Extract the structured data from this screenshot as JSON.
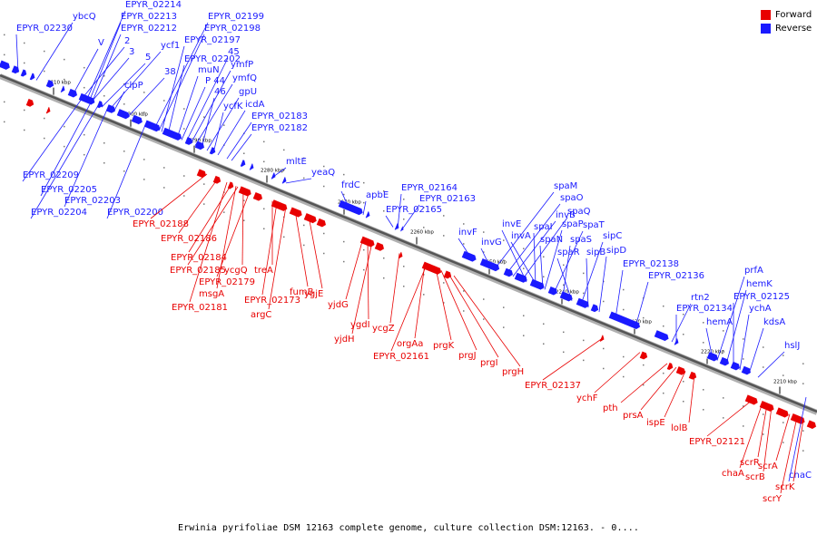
{
  "legend": {
    "forward_label": "Forward",
    "reverse_label": "Reverse",
    "forward_color": "#e80000",
    "reverse_color": "#1a1aff"
  },
  "caption": "Erwinia pyrifoliae DSM 12163 complete genome, culture collection DSM:12163. - 0....",
  "ticks": [
    "2310 kbp",
    "2300 kbp",
    "2290 kbp",
    "2280 kbp",
    "2270 kbp",
    "2260 kbp",
    "2250 kbp",
    "2240 kbp",
    "2230 kbp",
    "2220 kbp",
    "2210 kbp"
  ],
  "reverse_genes": [
    "EPYR_02214",
    "EPYR_02213",
    "EPYR_02212",
    "EPYR_02199",
    "EPYR_02198",
    "EPYR_02197",
    "EPYR_02230",
    "ybcQ",
    "V",
    "2",
    "3",
    "ycf1",
    "5",
    "38",
    "clpP",
    "EPYR_02202",
    "muN",
    "45",
    "ymfP",
    "P 44",
    "ymfQ",
    "46",
    "gpU",
    "ycfK",
    "icdA",
    "EPYR_02183",
    "EPYR_02182",
    "mltE",
    "yeaQ",
    "frdC",
    "apbE",
    "EPYR_02164",
    "EPYR_02163",
    "EPYR_02165",
    "EPYR_02209",
    "EPYR_02205",
    "EPYR_02203",
    "EPYR_02204",
    "EPYR_02200",
    "spaM",
    "spaO",
    "invB",
    "spaQ",
    "invE",
    "spaI",
    "spaP",
    "spaT",
    "invF",
    "invA",
    "spaN",
    "spaS",
    "sipC",
    "invG",
    "spaR",
    "sipB",
    "sipD",
    "EPYR_02138",
    "EPYR_02136",
    "rtn2",
    "EPYR_02134",
    "prfA",
    "hemK",
    "EPYR_02125",
    "ychA",
    "kdsA",
    "hemA",
    "hslJ",
    "chaC"
  ],
  "forward_genes": [
    "EPYR_02188",
    "EPYR_02186",
    "EPYR_02184",
    "EPYR_02185",
    "ycgQ",
    "EPYR_02179",
    "msgA",
    "EPYR_02181",
    "treA",
    "EPYR_02173",
    "argC",
    "fumB",
    "ygjE",
    "yjdG",
    "ygdI",
    "yjdH",
    "ycgZ",
    "orgAa",
    "EPYR_02161",
    "prgK",
    "prgJ",
    "prgI",
    "prgH",
    "EPYR_02137",
    "ychF",
    "pth",
    "prsA",
    "ispE",
    "lolB",
    "EPYR_02121",
    "scrR",
    "chaA",
    "scrB",
    "scrA",
    "scrK",
    "scrY"
  ]
}
